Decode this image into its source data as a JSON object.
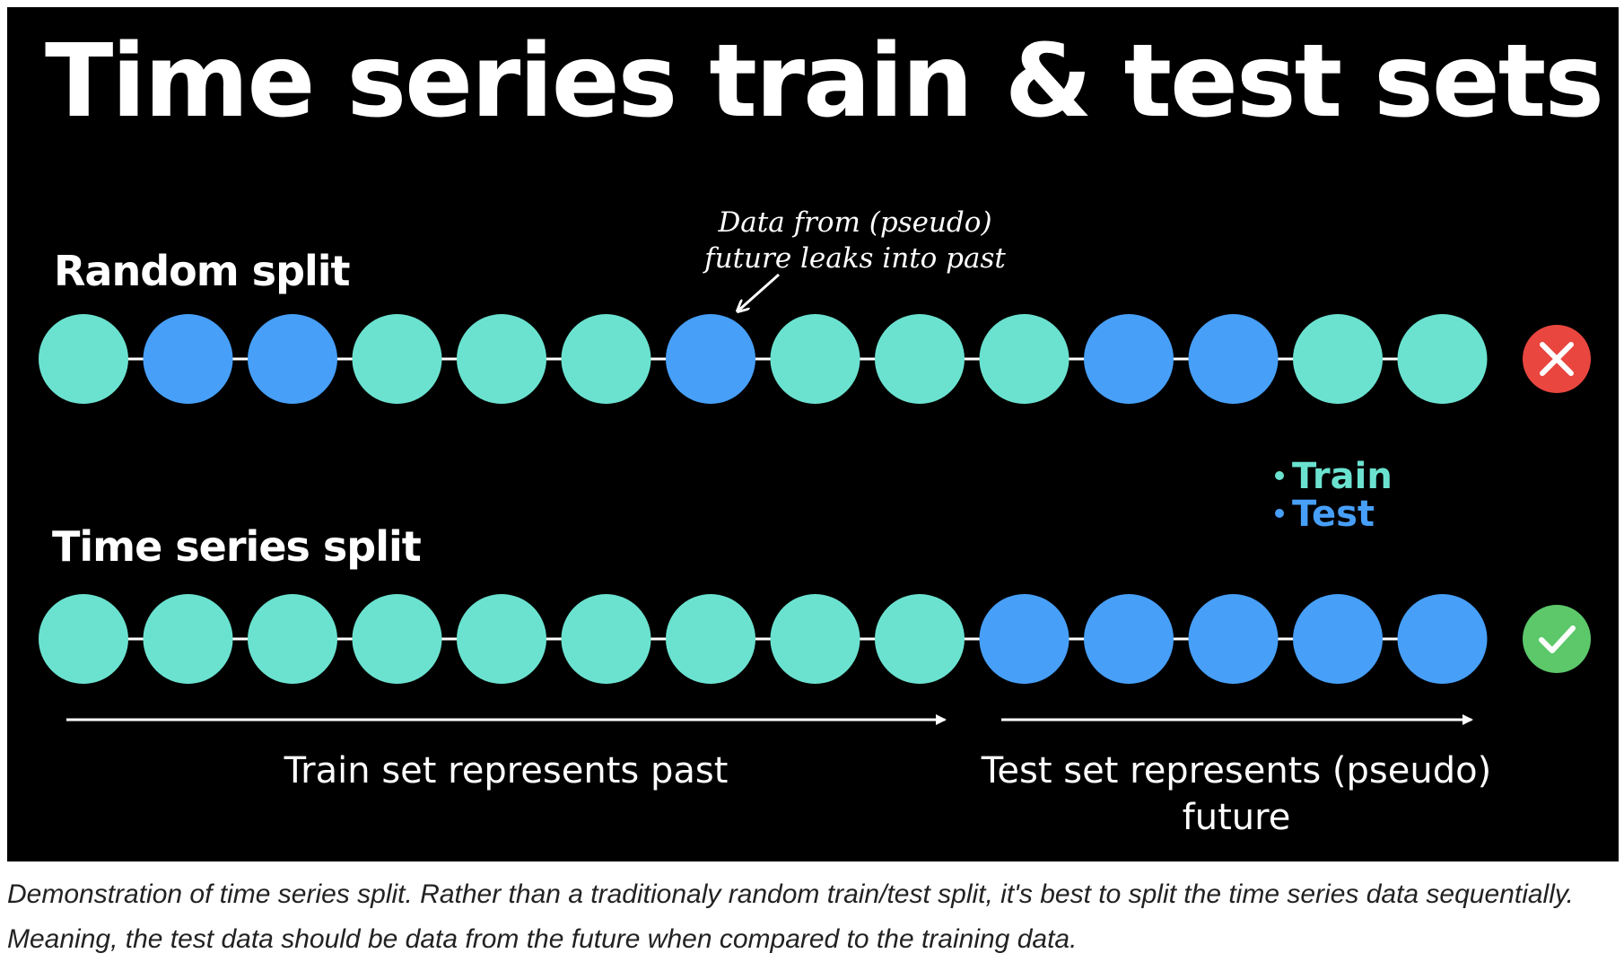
{
  "title": "Time series train & test sets",
  "colors": {
    "background": "#000000",
    "train": "#6be2d0",
    "test": "#479ff8",
    "line": "#ffffff",
    "fail_badge": "#e8463f",
    "pass_badge": "#5cc86a"
  },
  "random_split": {
    "label": "Random split",
    "sequence": [
      "train",
      "test",
      "test",
      "train",
      "train",
      "train",
      "test",
      "train",
      "train",
      "train",
      "test",
      "test",
      "train",
      "train"
    ],
    "status_icon": "x-icon",
    "annotation": [
      "Data from (pseudo)",
      "future leaks into past"
    ],
    "annotation_target_index": 6
  },
  "time_series_split": {
    "label": "Time series split",
    "sequence": [
      "train",
      "train",
      "train",
      "train",
      "train",
      "train",
      "train",
      "train",
      "train",
      "test",
      "test",
      "test",
      "test",
      "test"
    ],
    "status_icon": "check-icon",
    "train_range_label": "Train set represents past",
    "test_range_label": [
      "Test set represents (pseudo)",
      "future"
    ]
  },
  "legend": {
    "train": "Train",
    "test": "Test"
  },
  "caption": "Demonstration of time series split. Rather than a traditionaly random train/test split, it's best to split the time series data sequentially. Meaning, the test data should be data from the future when compared to the training data."
}
